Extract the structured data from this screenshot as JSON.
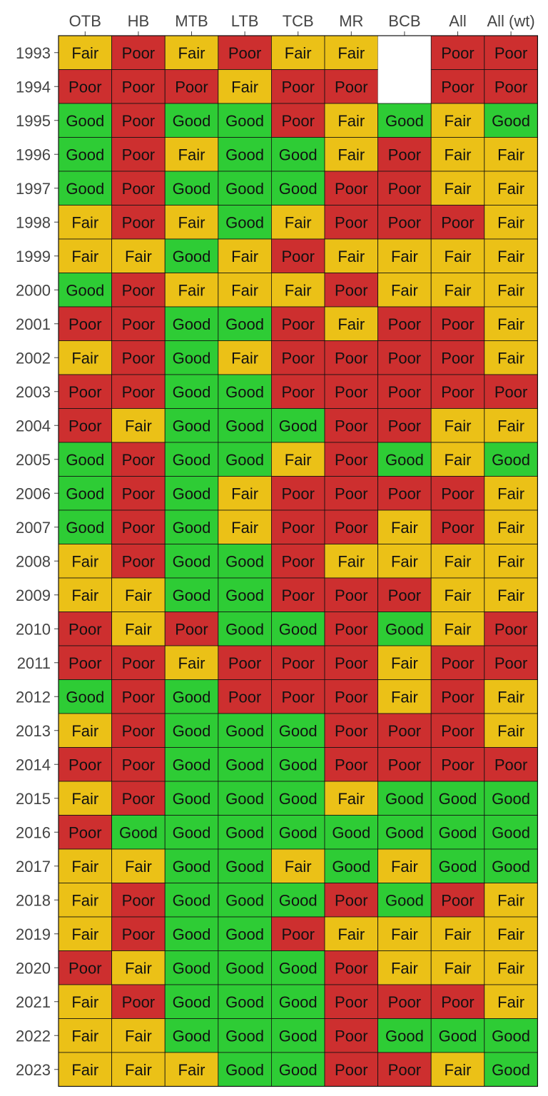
{
  "chart_data": {
    "type": "heatmap",
    "columns": [
      "OTB",
      "HB",
      "MTB",
      "LTB",
      "TCB",
      "MR",
      "BCB",
      "All",
      "All (wt)"
    ],
    "rows": [
      "1993",
      "1994",
      "1995",
      "1996",
      "1997",
      "1998",
      "1999",
      "2000",
      "2001",
      "2002",
      "2003",
      "2004",
      "2005",
      "2006",
      "2007",
      "2008",
      "2009",
      "2010",
      "2011",
      "2012",
      "2013",
      "2014",
      "2015",
      "2016",
      "2017",
      "2018",
      "2019",
      "2020",
      "2021",
      "2022",
      "2023"
    ],
    "colors": {
      "Good": "#2ecc35",
      "Fair": "#ebc117",
      "Poor": "#cd2f2f",
      "": "#ffffff"
    },
    "values": [
      [
        "Fair",
        "Poor",
        "Fair",
        "Poor",
        "Fair",
        "Fair",
        "",
        "Poor",
        "Poor"
      ],
      [
        "Poor",
        "Poor",
        "Poor",
        "Fair",
        "Poor",
        "Poor",
        "",
        "Poor",
        "Poor"
      ],
      [
        "Good",
        "Poor",
        "Good",
        "Good",
        "Poor",
        "Fair",
        "Good",
        "Fair",
        "Good"
      ],
      [
        "Good",
        "Poor",
        "Fair",
        "Good",
        "Good",
        "Fair",
        "Poor",
        "Fair",
        "Fair"
      ],
      [
        "Good",
        "Poor",
        "Good",
        "Good",
        "Good",
        "Poor",
        "Poor",
        "Fair",
        "Fair"
      ],
      [
        "Fair",
        "Poor",
        "Fair",
        "Good",
        "Fair",
        "Poor",
        "Poor",
        "Poor",
        "Fair"
      ],
      [
        "Fair",
        "Fair",
        "Good",
        "Fair",
        "Poor",
        "Fair",
        "Fair",
        "Fair",
        "Fair"
      ],
      [
        "Good",
        "Poor",
        "Fair",
        "Fair",
        "Fair",
        "Poor",
        "Fair",
        "Fair",
        "Fair"
      ],
      [
        "Poor",
        "Poor",
        "Good",
        "Good",
        "Poor",
        "Fair",
        "Poor",
        "Poor",
        "Fair"
      ],
      [
        "Fair",
        "Poor",
        "Good",
        "Fair",
        "Poor",
        "Poor",
        "Poor",
        "Poor",
        "Fair"
      ],
      [
        "Poor",
        "Poor",
        "Good",
        "Good",
        "Poor",
        "Poor",
        "Poor",
        "Poor",
        "Poor"
      ],
      [
        "Poor",
        "Fair",
        "Good",
        "Good",
        "Good",
        "Poor",
        "Poor",
        "Fair",
        "Fair"
      ],
      [
        "Good",
        "Poor",
        "Good",
        "Good",
        "Fair",
        "Poor",
        "Good",
        "Fair",
        "Good"
      ],
      [
        "Good",
        "Poor",
        "Good",
        "Fair",
        "Poor",
        "Poor",
        "Poor",
        "Poor",
        "Fair"
      ],
      [
        "Good",
        "Poor",
        "Good",
        "Fair",
        "Poor",
        "Poor",
        "Fair",
        "Poor",
        "Fair"
      ],
      [
        "Fair",
        "Poor",
        "Good",
        "Good",
        "Poor",
        "Fair",
        "Fair",
        "Fair",
        "Fair"
      ],
      [
        "Fair",
        "Fair",
        "Good",
        "Good",
        "Poor",
        "Poor",
        "Poor",
        "Fair",
        "Fair"
      ],
      [
        "Poor",
        "Fair",
        "Poor",
        "Good",
        "Good",
        "Poor",
        "Good",
        "Fair",
        "Poor"
      ],
      [
        "Poor",
        "Poor",
        "Fair",
        "Poor",
        "Poor",
        "Poor",
        "Fair",
        "Poor",
        "Poor"
      ],
      [
        "Good",
        "Poor",
        "Good",
        "Poor",
        "Poor",
        "Poor",
        "Fair",
        "Poor",
        "Fair"
      ],
      [
        "Fair",
        "Poor",
        "Good",
        "Good",
        "Good",
        "Poor",
        "Poor",
        "Poor",
        "Fair"
      ],
      [
        "Poor",
        "Poor",
        "Good",
        "Good",
        "Good",
        "Poor",
        "Poor",
        "Poor",
        "Poor"
      ],
      [
        "Fair",
        "Poor",
        "Good",
        "Good",
        "Good",
        "Fair",
        "Good",
        "Good",
        "Good"
      ],
      [
        "Poor",
        "Good",
        "Good",
        "Good",
        "Good",
        "Good",
        "Good",
        "Good",
        "Good"
      ],
      [
        "Fair",
        "Fair",
        "Good",
        "Good",
        "Fair",
        "Good",
        "Fair",
        "Good",
        "Good"
      ],
      [
        "Fair",
        "Poor",
        "Good",
        "Good",
        "Good",
        "Poor",
        "Good",
        "Poor",
        "Fair"
      ],
      [
        "Fair",
        "Poor",
        "Good",
        "Good",
        "Poor",
        "Fair",
        "Fair",
        "Fair",
        "Fair"
      ],
      [
        "Poor",
        "Fair",
        "Good",
        "Good",
        "Good",
        "Poor",
        "Fair",
        "Fair",
        "Fair"
      ],
      [
        "Fair",
        "Poor",
        "Good",
        "Good",
        "Good",
        "Poor",
        "Poor",
        "Poor",
        "Fair"
      ],
      [
        "Fair",
        "Fair",
        "Good",
        "Good",
        "Good",
        "Poor",
        "Good",
        "Good",
        "Good"
      ],
      [
        "Fair",
        "Fair",
        "Fair",
        "Good",
        "Good",
        "Poor",
        "Poor",
        "Fair",
        "Good"
      ]
    ],
    "legend": "none",
    "grid": true
  }
}
